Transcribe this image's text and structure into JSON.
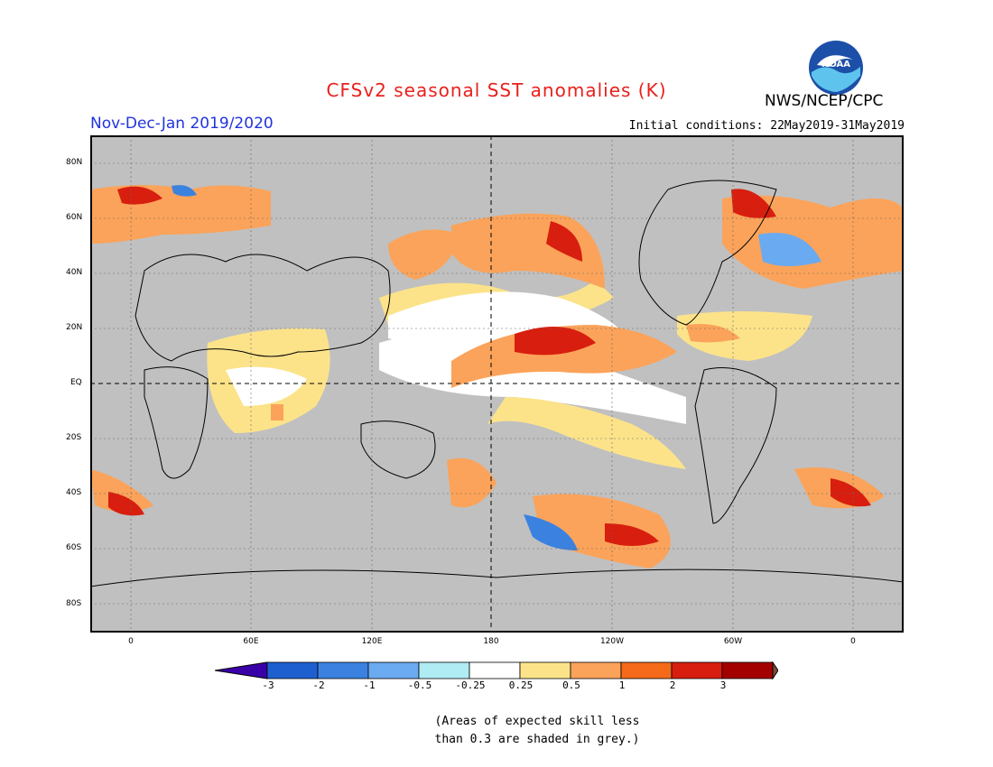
{
  "title": "CFSv2 seasonal SST anomalies (K)",
  "season": "Nov-Dec-Jan 2019/2020",
  "initial_conditions": "Initial conditions: 22May2019-31May2019",
  "agency": "NWS/NCEP/CPC",
  "logo_text": "NOAA",
  "lat_labels": [
    "80N",
    "60N",
    "40N",
    "20N",
    "EQ",
    "20S",
    "40S",
    "60S",
    "80S"
  ],
  "lon_labels": [
    "0",
    "60E",
    "120E",
    "180",
    "120W",
    "60W",
    "0"
  ],
  "colorbar": {
    "labels": [
      "-3",
      "-2",
      "-1",
      "-0.5",
      "-0.25",
      "0.25",
      "0.5",
      "1",
      "2",
      "3"
    ],
    "colors": [
      "#3a00a8",
      "#1e5fd0",
      "#3b82e0",
      "#6aaaf0",
      "#b0ecf4",
      "#ffffff",
      "#fce38a",
      "#fba35a",
      "#f46a1a",
      "#d81e0e",
      "#a30000",
      "#7a4a3a"
    ]
  },
  "colors": {
    "land_grey": "#c0c0c0",
    "title_red": "#e8201c",
    "season_blue": "#2233dd"
  },
  "footnote": [
    "(Areas of expected skill less",
    "than 0.3 are shaded in grey.)"
  ]
}
